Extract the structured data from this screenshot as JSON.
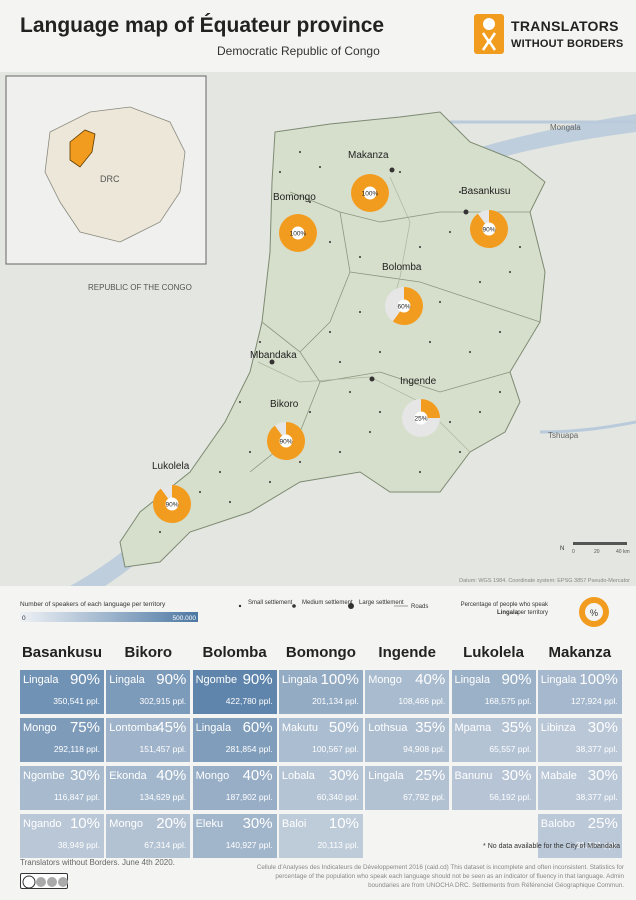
{
  "header": {
    "title": "Language map of Équateur province",
    "subtitle": "Democratic Republic of Congo",
    "logo_line1": "TRANSLATORS",
    "logo_line2": "WITHOUT BORDERS"
  },
  "map": {
    "inset_label": "DRC",
    "country_label": "REPUBLIC OF THE CONGO",
    "rivers": [
      "Mongala",
      "Tshuapa"
    ],
    "scale_labels": [
      "0",
      "20",
      "40 km"
    ],
    "north_label": "N",
    "datum": "Datum: WGS 1984. Coordinate system: EPSG 3857 Pseudo-Mercator",
    "territories": [
      {
        "name": "Makanza",
        "pct": 100,
        "pct_label": "100%"
      },
      {
        "name": "Bomongo",
        "pct": 100,
        "pct_label": "100%"
      },
      {
        "name": "Basankusu",
        "pct": 90,
        "pct_label": "90%"
      },
      {
        "name": "Bolomba",
        "pct": 60,
        "pct_label": "60%"
      },
      {
        "name": "Ingende",
        "pct": 25,
        "pct_label": "25%"
      },
      {
        "name": "Bikoro",
        "pct": 90,
        "pct_label": "90%"
      },
      {
        "name": "Lukolela",
        "pct": 90,
        "pct_label": "90%"
      }
    ],
    "city": "Mbandaka"
  },
  "legend": {
    "gradient_title": "Number of speakers of each language per territory",
    "gradient_min": "0",
    "gradient_max": "500.000",
    "small": "Small settlement",
    "medium": "Medium settlement",
    "large": "Large settlement",
    "roads": "Roads",
    "pie_title_1": "Percentage of people who speak",
    "pie_title_2": "Lingala",
    "pie_title_3": "per territory",
    "pie_symbol": "%"
  },
  "table": {
    "columns": [
      {
        "name": "Basankusu",
        "rows": [
          {
            "lang": "Lingala",
            "pct": "90%",
            "ppl": "350,541 ppl.",
            "value": 350541
          },
          {
            "lang": "Mongo",
            "pct": "75%",
            "ppl": "292,118 ppl.",
            "value": 292118
          },
          {
            "lang": "Ngombe",
            "pct": "30%",
            "ppl": "116,847 ppl.",
            "value": 116847
          },
          {
            "lang": "Ngando",
            "pct": "10%",
            "ppl": "38,949 ppl.",
            "value": 38949
          }
        ]
      },
      {
        "name": "Bikoro",
        "rows": [
          {
            "lang": "Lingala",
            "pct": "90%",
            "ppl": "302,915 ppl.",
            "value": 302915
          },
          {
            "lang": "Lontomba",
            "pct": "45%",
            "ppl": "151,457 ppl.",
            "value": 151457
          },
          {
            "lang": "Ekonda",
            "pct": "40%",
            "ppl": "134,629 ppl.",
            "value": 134629
          },
          {
            "lang": "Mongo",
            "pct": "20%",
            "ppl": "67,314 ppl.",
            "value": 67314
          }
        ]
      },
      {
        "name": "Bolomba",
        "rows": [
          {
            "lang": "Ngombe",
            "pct": "90%",
            "ppl": "422,780 ppl.",
            "value": 422780
          },
          {
            "lang": "Lingala",
            "pct": "60%",
            "ppl": "281,854 ppl.",
            "value": 281854
          },
          {
            "lang": "Mongo",
            "pct": "40%",
            "ppl": "187,902 ppl.",
            "value": 187902
          },
          {
            "lang": "Eleku",
            "pct": "30%",
            "ppl": "140,927 ppl.",
            "value": 140927
          }
        ]
      },
      {
        "name": "Bomongo",
        "rows": [
          {
            "lang": "Lingala",
            "pct": "100%",
            "ppl": "201,134 ppl.",
            "value": 201134
          },
          {
            "lang": "Makutu",
            "pct": "50%",
            "ppl": "100,567 ppl.",
            "value": 100567
          },
          {
            "lang": "Lobala",
            "pct": "30%",
            "ppl": "60,340 ppl.",
            "value": 60340
          },
          {
            "lang": "Baloi",
            "pct": "10%",
            "ppl": "20,113 ppl.",
            "value": 20113
          }
        ]
      },
      {
        "name": "Ingende",
        "rows": [
          {
            "lang": "Mongo",
            "pct": "40%",
            "ppl": "108,466 ppl.",
            "value": 108466
          },
          {
            "lang": "Lothsua",
            "pct": "35%",
            "ppl": "94,908 ppl.",
            "value": 94908
          },
          {
            "lang": "Lingala",
            "pct": "25%",
            "ppl": "67,792 ppl.",
            "value": 67792
          }
        ]
      },
      {
        "name": "Lukolela",
        "rows": [
          {
            "lang": "Lingala",
            "pct": "90%",
            "ppl": "168,575 ppl.",
            "value": 168575
          },
          {
            "lang": "Mpama",
            "pct": "35%",
            "ppl": "65,557 ppl.",
            "value": 65557
          },
          {
            "lang": "Banunu",
            "pct": "30%",
            "ppl": "56,192 ppl.",
            "value": 56192
          }
        ]
      },
      {
        "name": "Makanza",
        "rows": [
          {
            "lang": "Lingala",
            "pct": "100%",
            "ppl": "127,924 ppl.",
            "value": 127924
          },
          {
            "lang": "Libinza",
            "pct": "30%",
            "ppl": "38,377 ppl.",
            "value": 38377
          },
          {
            "lang": "Mabale",
            "pct": "30%",
            "ppl": "38,377 ppl.",
            "value": 38377
          },
          {
            "lang": "Balobo",
            "pct": "25%",
            "ppl": "31,981 ppl.",
            "value": 31981
          }
        ]
      }
    ],
    "scale_max": 500000,
    "color_low": "#c3cedb",
    "color_high": "#4d78a3"
  },
  "footer": {
    "note": "* No data available for the City of Mbandaka",
    "credit": "Translators without Borders. June 4th 2020.",
    "source": "Cellule d'Analyses des Indicateurs de Développement 2016 (caid.cd) This dataset is incomplete and often inconsistent. Statistics for percentage of the population who speak each language should not be seen as an indicator of fluency in that language. Admin boundaries are from UNOCHA DRC. Settlements from Référenciel Géographique Commun.",
    "license": "cc BY NC SA"
  },
  "colors": {
    "orange": "#f29c1f",
    "pie_bg": "#e6e6e6",
    "land": "#e3e8dc",
    "province": "#cfd8c1",
    "water": "#b4c8d9"
  }
}
